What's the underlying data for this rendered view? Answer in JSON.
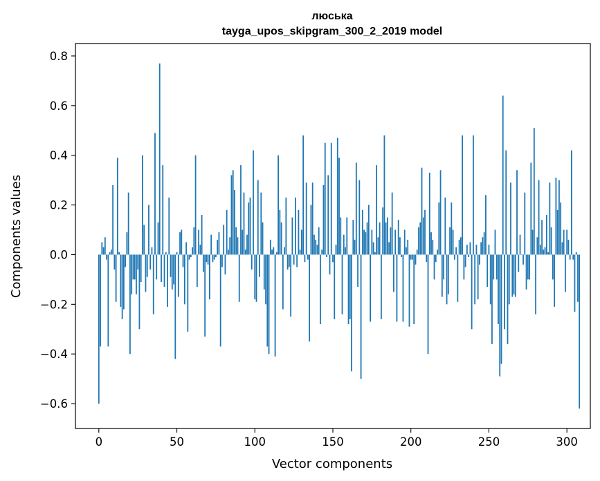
{
  "chart_data": {
    "type": "bar",
    "title": "люська",
    "subtitle": "tayga_upos_skipgram_300_2_2019 model",
    "xlabel": "Vector components",
    "ylabel": "Components values",
    "xlim": [
      -15,
      315
    ],
    "ylim": [
      -0.7,
      0.85
    ],
    "xticks": [
      0,
      50,
      100,
      150,
      200,
      250,
      300
    ],
    "xtick_labels": [
      "0",
      "50",
      "100",
      "150",
      "200",
      "250",
      "300"
    ],
    "yticks": [
      -0.6,
      -0.4,
      -0.2,
      0.0,
      0.2,
      0.4,
      0.6,
      0.8
    ],
    "ytick_labels": [
      "−0.6",
      "−0.4",
      "−0.2",
      "0.0",
      "0.2",
      "0.4",
      "0.6",
      "0.8"
    ],
    "bar_color": "#1f77b4",
    "values": [
      -0.6,
      -0.37,
      0.05,
      0.03,
      0.07,
      -0.02,
      -0.37,
      0.01,
      0.02,
      0.28,
      -0.06,
      -0.19,
      0.39,
      0.01,
      -0.21,
      -0.26,
      -0.22,
      -0.05,
      0.09,
      0.25,
      -0.4,
      -0.16,
      -0.1,
      -0.1,
      -0.16,
      -0.06,
      -0.3,
      -0.11,
      0.4,
      0.12,
      -0.15,
      -0.09,
      0.2,
      -0.06,
      0.03,
      -0.24,
      0.49,
      -0.1,
      0.13,
      0.77,
      -0.11,
      0.36,
      -0.13,
      0.01,
      -0.21,
      0.23,
      -0.09,
      -0.14,
      -0.12,
      -0.42,
      0.01,
      -0.17,
      0.09,
      0.1,
      -0.05,
      -0.2,
      0.05,
      -0.31,
      -0.02,
      -0.01,
      0.03,
      0.11,
      0.4,
      -0.13,
      0.1,
      0.04,
      0.16,
      -0.07,
      -0.33,
      -0.03,
      -0.04,
      -0.18,
      0.08,
      -0.03,
      -0.02,
      -0.01,
      0.06,
      0.09,
      -0.37,
      -0.05,
      0.12,
      -0.08,
      0.18,
      0.02,
      0.07,
      0.32,
      0.34,
      0.26,
      0.11,
      0.07,
      -0.19,
      0.36,
      0.1,
      0.25,
      0.02,
      0.08,
      0.21,
      0.23,
      -0.06,
      0.42,
      -0.18,
      -0.19,
      0.3,
      -0.09,
      0.25,
      0.13,
      -0.14,
      -0.2,
      -0.37,
      -0.4,
      0.06,
      0.02,
      0.03,
      -0.41,
      0.01,
      0.4,
      0.18,
      0.13,
      -0.22,
      0.03,
      0.23,
      -0.06,
      -0.05,
      -0.25,
      0.15,
      -0.04,
      0.23,
      -0.05,
      0.18,
      0.02,
      0.1,
      0.48,
      -0.03,
      0.29,
      -0.02,
      -0.35,
      0.2,
      0.29,
      0.08,
      0.06,
      0.04,
      0.11,
      -0.28,
      0.02,
      0.28,
      0.45,
      -0.01,
      0.32,
      -0.08,
      0.45,
      -0.03,
      -0.26,
      0.04,
      0.47,
      0.39,
      0.15,
      -0.24,
      0.08,
      0.03,
      0.15,
      -0.28,
      -0.26,
      -0.47,
      0.14,
      0.06,
      0.37,
      -0.13,
      0.3,
      -0.5,
      0.18,
      0.1,
      0.09,
      0.13,
      0.2,
      -0.27,
      0.1,
      0.05,
      0.01,
      0.36,
      0.07,
      0.13,
      -0.26,
      0.19,
      0.48,
      0.13,
      0.15,
      0.05,
      0.11,
      0.25,
      -0.15,
      0.1,
      -0.27,
      0.14,
      0.07,
      -0.01,
      -0.27,
      0.1,
      0.03,
      0.06,
      -0.29,
      -0.02,
      -0.02,
      -0.28,
      -0.04,
      0.02,
      0.11,
      0.13,
      0.35,
      0.15,
      0.18,
      -0.03,
      -0.4,
      0.33,
      0.09,
      0.06,
      -0.1,
      -0.03,
      0.02,
      0.21,
      0.34,
      -0.17,
      -0.1,
      0.23,
      -0.2,
      -0.16,
      0.11,
      0.21,
      0.1,
      -0.02,
      0.03,
      -0.19,
      0.06,
      0.07,
      0.48,
      -0.1,
      -0.05,
      0.04,
      -0.01,
      0.05,
      -0.3,
      0.48,
      -0.2,
      0.04,
      -0.18,
      -0.04,
      0.05,
      0.07,
      0.09,
      0.24,
      -0.13,
      0.04,
      -0.2,
      -0.36,
      -0.1,
      0.1,
      -0.1,
      -0.28,
      -0.49,
      -0.44,
      0.64,
      -0.3,
      0.42,
      -0.36,
      -0.2,
      0.29,
      -0.17,
      -0.16,
      -0.17,
      0.34,
      -0.07,
      0.08,
      0.0,
      -0.04,
      0.25,
      -0.14,
      -0.1,
      -0.1,
      0.37,
      0.1,
      0.51,
      -0.24,
      0.07,
      0.3,
      0.04,
      0.14,
      0.02,
      0.03,
      0.16,
      0.01,
      0.29,
      0.11,
      -0.1,
      -0.21,
      0.31,
      0.18,
      0.3,
      0.21,
      0.05,
      0.1,
      -0.15,
      0.1,
      0.06,
      -0.02,
      0.42,
      -0.02,
      -0.23,
      0.01,
      -0.19,
      -0.62
    ]
  }
}
